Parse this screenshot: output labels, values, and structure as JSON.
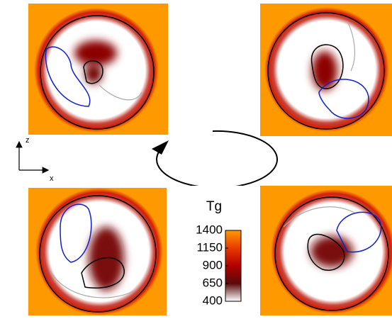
{
  "axes_indicator": {
    "vertical": "z",
    "horizontal": "x"
  },
  "colorbar": {
    "label": "Tg",
    "lim": [
      400,
      1400
    ],
    "ticks": [
      1400,
      1150,
      900,
      650,
      400
    ]
  }
}
